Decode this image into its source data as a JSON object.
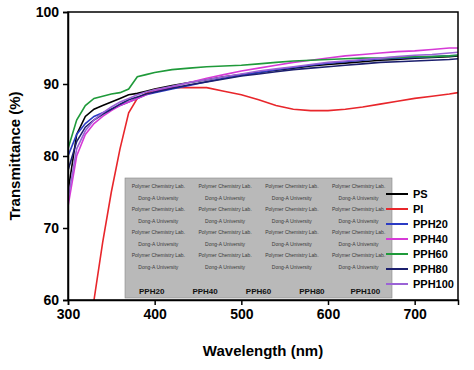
{
  "chart_data": {
    "type": "line",
    "x_label": "Wavelength (nm)",
    "y_label": "Transmittance (%)",
    "xlim": [
      300,
      750
    ],
    "xticks": [
      300,
      400,
      500,
      600,
      700
    ],
    "ylim": [
      60,
      100
    ],
    "yticks": [
      60,
      70,
      80,
      90,
      100
    ],
    "legend": "lower right",
    "annotations": [
      "Polymer Chemistry Lab.",
      "Dong-A University",
      "PPH20",
      "PPH40",
      "PPH60",
      "PPH80",
      "PPH100"
    ],
    "x": [
      300,
      310,
      320,
      330,
      340,
      350,
      360,
      370,
      380,
      390,
      400,
      420,
      440,
      460,
      480,
      500,
      520,
      540,
      560,
      580,
      600,
      620,
      640,
      660,
      680,
      700,
      720,
      740,
      750
    ],
    "series": [
      {
        "name": "PS",
        "color": "#000000",
        "values": [
          75,
          83,
          85.5,
          86.5,
          87,
          87.5,
          88,
          88.5,
          88.7,
          89,
          89.3,
          89.8,
          90.2,
          90.6,
          91,
          91.3,
          91.6,
          91.9,
          92.2,
          92.5,
          92.7,
          92.9,
          93.1,
          93.3,
          93.4,
          93.6,
          93.7,
          93.8,
          93.9
        ]
      },
      {
        "name": "PI",
        "color": "#e8262b",
        "values": [
          null,
          null,
          null,
          60,
          68,
          75,
          81,
          86,
          88,
          88.7,
          89.2,
          89.5,
          89.5,
          89.5,
          89,
          88.5,
          87.8,
          87,
          86.5,
          86.3,
          86.3,
          86.5,
          86.8,
          87.2,
          87.6,
          88,
          88.3,
          88.6,
          88.8
        ]
      },
      {
        "name": "PPH20",
        "color": "#2b3bc4",
        "values": [
          80,
          83,
          84.5,
          85.5,
          86,
          86.5,
          87,
          87.5,
          88,
          88.5,
          88.8,
          89.3,
          89.8,
          90.3,
          90.8,
          91.2,
          91.6,
          92,
          92.3,
          92.6,
          92.9,
          93.1,
          93.3,
          93.5,
          93.6,
          93.7,
          93.8,
          93.9,
          94
        ]
      },
      {
        "name": "PPH40",
        "color": "#d63ad6",
        "values": [
          73,
          80,
          83,
          84.5,
          85.5,
          86.3,
          87,
          87.5,
          88,
          88.5,
          89,
          89.6,
          90.2,
          90.8,
          91.3,
          91.8,
          92.2,
          92.6,
          93,
          93.3,
          93.6,
          93.9,
          94.1,
          94.3,
          94.5,
          94.6,
          94.8,
          95,
          95
        ]
      },
      {
        "name": "PPH60",
        "color": "#1f9a3a",
        "values": [
          81,
          85,
          87,
          88,
          88.3,
          88.6,
          88.8,
          89.3,
          91,
          91.3,
          91.6,
          92,
          92.2,
          92.4,
          92.5,
          92.6,
          92.8,
          93,
          93.2,
          93.3,
          93.4,
          93.5,
          93.6,
          93.6,
          93.7,
          93.8,
          93.8,
          93.9,
          94
        ]
      },
      {
        "name": "PPH80",
        "color": "#1c1f6e",
        "values": [
          78,
          82,
          84,
          85,
          85.8,
          86.5,
          87.2,
          87.8,
          88.2,
          88.6,
          88.9,
          89.4,
          89.9,
          90.3,
          90.7,
          91.1,
          91.4,
          91.7,
          92,
          92.2,
          92.4,
          92.6,
          92.8,
          93,
          93.1,
          93.2,
          93.3,
          93.4,
          93.5
        ]
      },
      {
        "name": "PPH100",
        "color": "#9b63d6",
        "values": [
          74,
          81,
          83.5,
          85,
          86,
          86.8,
          87.5,
          88,
          88.5,
          88.9,
          89.2,
          89.7,
          90.2,
          90.6,
          91,
          91.4,
          91.8,
          92.1,
          92.4,
          92.7,
          93,
          93.2,
          93.4,
          93.6,
          93.8,
          94,
          94.1,
          94.3,
          94.4
        ]
      }
    ]
  }
}
